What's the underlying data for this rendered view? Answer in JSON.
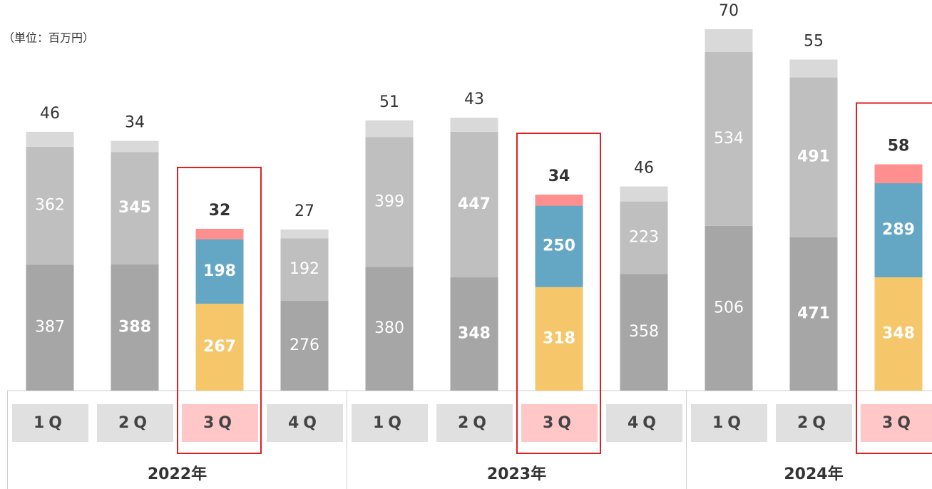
{
  "chart_data": {
    "type": "stacked_bar",
    "unit_label": "（単位：百万円）",
    "groups": [
      {
        "label": "2022年",
        "categories": [
          "1Q",
          "2Q",
          "3Q",
          "4Q"
        ]
      },
      {
        "label": "2023年",
        "categories": [
          "1Q",
          "2Q",
          "3Q",
          "4Q"
        ]
      },
      {
        "label": "2024年",
        "categories": [
          "1Q",
          "2Q",
          "3Q"
        ]
      }
    ],
    "highlighted": [
      false,
      false,
      true,
      false,
      false,
      false,
      true,
      false,
      false,
      false,
      true
    ],
    "bold": [
      false,
      true,
      true,
      false,
      false,
      true,
      true,
      false,
      false,
      true,
      true
    ],
    "series": [
      {
        "colors": [
          "#a6a6a6",
          "#a6a6a6",
          "#f5c66a",
          "#a6a6a6",
          "#a6a6a6",
          "#a6a6a6",
          "#f5c66a",
          "#a6a6a6",
          "#a6a6a6",
          "#a6a6a6",
          "#f5c66a"
        ],
        "values": [
          387,
          388,
          267,
          276,
          380,
          348,
          318,
          358,
          506,
          471,
          348
        ]
      },
      {
        "colors": [
          "#bfbfbf",
          "#bfbfbf",
          "#63a7c4",
          "#bfbfbf",
          "#bfbfbf",
          "#bfbfbf",
          "#63a7c4",
          "#bfbfbf",
          "#bfbfbf",
          "#bfbfbf",
          "#63a7c4"
        ],
        "values": [
          362,
          345,
          198,
          192,
          399,
          447,
          250,
          223,
          534,
          491,
          289
        ]
      },
      {
        "colors": [
          "#d9d9d9",
          "#d9d9d9",
          "#ff8f8f",
          "#d9d9d9",
          "#d9d9d9",
          "#d9d9d9",
          "#ff8f8f",
          "#d9d9d9",
          "#d9d9d9",
          "#d9d9d9",
          "#ff8f8f"
        ],
        "values": [
          46,
          34,
          32,
          27,
          51,
          43,
          34,
          46,
          70,
          55,
          58
        ]
      }
    ]
  }
}
